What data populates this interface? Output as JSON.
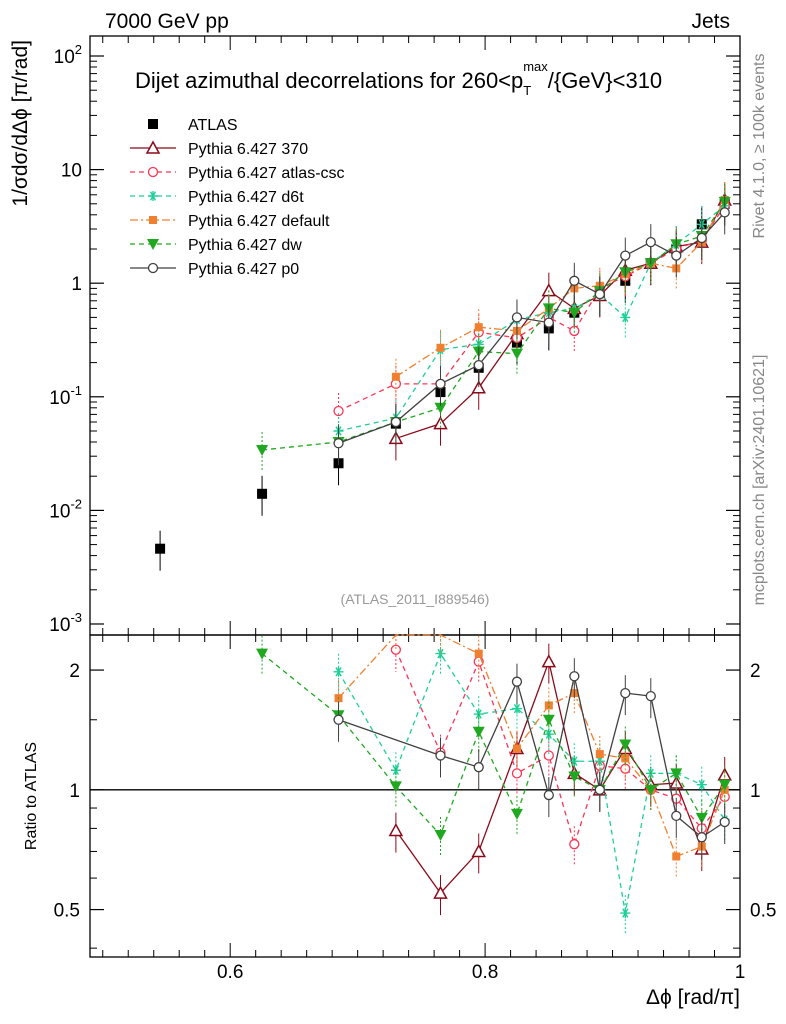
{
  "header": {
    "left": "7000 GeV pp",
    "right": "Jets"
  },
  "side_labels": {
    "rivet": "Rivet 4.1.0, ≥ 100k events",
    "mcplots": "mcplots.cern.ch [arXiv:2401.10621]"
  },
  "colors": {
    "ATLAS": "#000000",
    "370": "#8b0a1a",
    "atlas-csc": "#ff3355",
    "d6t": "#1fcf99",
    "default": "#f08030",
    "dw": "#20a820",
    "p0": "#404040"
  },
  "chart_data": [
    {
      "type": "line",
      "panel": "main",
      "title": "Dijet azimuthal decorrelations for 260<p_T^max/{GeV}<310",
      "title_parts": {
        "prefix": "Dijet azimuthal decorrelations for 260<p",
        "sub": "T",
        "sup": "max",
        "suffix": "/{GeV}<310"
      },
      "ylabel": "1/σdσ/dΔϕ [π/rad]",
      "yscale": "log",
      "ylim": [
        0.0008,
        150
      ],
      "xlim": [
        0.49,
        1.0
      ],
      "yticks": [
        {
          "base": "10",
          "exp": "-3",
          "v": 0.001
        },
        {
          "base": "10",
          "exp": "-2",
          "v": 0.01
        },
        {
          "base": "10",
          "exp": "-1",
          "v": 0.1
        },
        {
          "label": "1",
          "v": 1
        },
        {
          "label": "10",
          "v": 10
        },
        {
          "base": "10",
          "exp": "2",
          "v": 100
        }
      ],
      "watermark": "(ATLAS_2011_I889546)",
      "x": [
        0.545,
        0.625,
        0.685,
        0.73,
        0.765,
        0.795,
        0.825,
        0.85,
        0.87,
        0.89,
        0.91,
        0.93,
        0.95,
        0.97,
        0.988
      ],
      "series": [
        {
          "key": "ATLAS",
          "name": "ATLAS",
          "marker": "square",
          "line": "none",
          "values": [
            0.0046,
            0.014,
            0.026,
            0.058,
            0.11,
            0.18,
            0.3,
            0.4,
            0.55,
            0.8,
            1.05,
            1.5,
            2.0,
            3.3,
            5.0
          ]
        },
        {
          "key": "370",
          "name": "Pythia 6.427 370",
          "marker": "triangle",
          "line": "solid",
          "values": [
            null,
            null,
            null,
            0.043,
            0.058,
            0.12,
            0.36,
            0.86,
            0.6,
            0.78,
            1.3,
            1.5,
            2.1,
            2.3,
            5.4
          ]
        },
        {
          "key": "atlas-csc",
          "name": "Pythia 6.427 atlas-csc",
          "marker": "circle-open",
          "line": "dashed",
          "values": [
            null,
            null,
            0.075,
            0.13,
            0.13,
            0.37,
            0.33,
            0.5,
            0.38,
            0.9,
            1.15,
            1.5,
            2.0,
            2.4,
            4.8
          ]
        },
        {
          "key": "d6t",
          "name": "Pythia 6.427 d6t",
          "marker": "star",
          "line": "dashed",
          "values": [
            null,
            null,
            0.05,
            0.065,
            0.26,
            0.29,
            0.48,
            0.55,
            0.6,
            0.8,
            0.5,
            1.5,
            2.2,
            3.3,
            4.8
          ]
        },
        {
          "key": "default",
          "name": "Pythia 6.427 default",
          "marker": "square-filled",
          "line": "dashdot",
          "values": [
            null,
            null,
            null,
            0.15,
            0.27,
            0.41,
            0.38,
            0.6,
            0.9,
            0.95,
            1.2,
            1.5,
            1.35,
            2.3,
            5.4
          ]
        },
        {
          "key": "dw",
          "name": "Pythia 6.427 dw",
          "marker": "triangle-down",
          "line": "dashed",
          "values": [
            null,
            0.034,
            0.04,
            0.06,
            0.08,
            0.25,
            0.24,
            0.6,
            0.55,
            0.85,
            1.25,
            1.5,
            2.2,
            2.6,
            5.2
          ]
        },
        {
          "key": "p0",
          "name": "Pythia 6.427 p0",
          "marker": "circle-open",
          "line": "solid",
          "values": [
            null,
            null,
            0.039,
            0.06,
            0.13,
            0.19,
            0.5,
            0.45,
            1.05,
            0.8,
            1.75,
            2.3,
            1.75,
            2.5,
            4.2
          ]
        }
      ]
    },
    {
      "type": "line",
      "panel": "ratio",
      "ylabel": "Ratio to ATLAS",
      "xlabel": "Δϕ [rad/π]",
      "yscale": "log",
      "ylim": [
        0.38,
        2.45
      ],
      "xlim": [
        0.49,
        1.0
      ],
      "yticks": [
        {
          "label": "0.5",
          "v": 0.5
        },
        {
          "label": "1",
          "v": 1
        },
        {
          "label": "2",
          "v": 2
        }
      ],
      "xticks": [
        {
          "label": "0.6",
          "v": 0.6
        },
        {
          "label": "0.8",
          "v": 0.8
        },
        {
          "label": "1",
          "v": 1.0
        }
      ],
      "x": [
        0.625,
        0.685,
        0.73,
        0.765,
        0.795,
        0.825,
        0.85,
        0.87,
        0.89,
        0.91,
        0.93,
        0.95,
        0.97,
        0.988
      ],
      "series": [
        {
          "key": "370",
          "name": "370",
          "marker": "triangle",
          "line": "solid",
          "values": [
            null,
            null,
            0.79,
            0.55,
            0.7,
            1.27,
            2.1,
            1.1,
            1.0,
            1.27,
            1.03,
            1.04,
            0.71,
            1.09
          ]
        },
        {
          "key": "atlas-csc",
          "name": "atlas-csc",
          "marker": "circle-open",
          "line": "dashed",
          "values": [
            null,
            null,
            2.25,
            1.24,
            2.1,
            1.1,
            1.22,
            0.73,
            1.15,
            1.13,
            1.0,
            0.95,
            0.8,
            0.96
          ]
        },
        {
          "key": "d6t",
          "name": "d6t",
          "marker": "star",
          "line": "dashed",
          "values": [
            null,
            1.98,
            1.12,
            2.2,
            1.55,
            1.6,
            1.38,
            1.18,
            1.18,
            0.49,
            1.1,
            1.1,
            1.03,
            0.84
          ]
        },
        {
          "key": "default",
          "name": "default",
          "marker": "square-filled",
          "line": "dashdot",
          "values": [
            null,
            1.7,
            2.55,
            2.5,
            2.2,
            1.27,
            1.63,
            1.75,
            1.23,
            1.2,
            1.0,
            0.68,
            0.72,
            1.0
          ]
        },
        {
          "key": "dw",
          "name": "dw",
          "marker": "triangle-down",
          "line": "dashed",
          "values": [
            2.2,
            1.54,
            1.02,
            0.77,
            1.4,
            0.87,
            1.5,
            1.08,
            1.0,
            1.3,
            1.0,
            1.1,
            0.85,
            1.03
          ]
        },
        {
          "key": "p0",
          "name": "p0",
          "marker": "circle-open",
          "line": "solid",
          "values": [
            null,
            1.5,
            null,
            1.22,
            1.14,
            1.87,
            0.97,
            1.93,
            1.0,
            1.75,
            1.72,
            0.86,
            0.76,
            0.83
          ]
        }
      ]
    }
  ]
}
